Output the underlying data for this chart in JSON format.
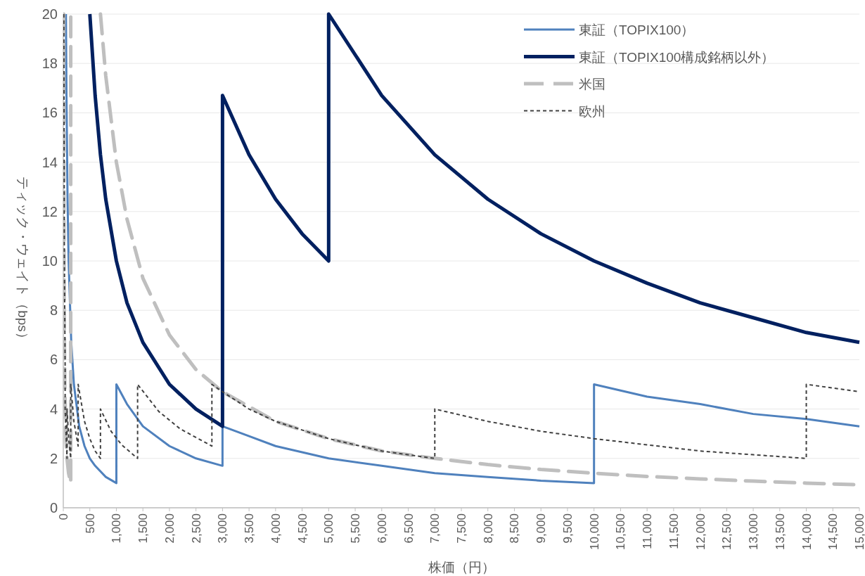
{
  "chart_data": {
    "type": "line",
    "xlabel": "株価（円）",
    "ylabel": "ティック・ウェイト（bps）",
    "xlim": [
      0,
      15000
    ],
    "ylim": [
      0,
      20
    ],
    "xticks": [
      0,
      500,
      {
        "value": 1000,
        "label": "1,000"
      },
      {
        "value": 1500,
        "label": "1,500"
      },
      {
        "value": 2000,
        "label": "2,000"
      },
      {
        "value": 2500,
        "label": "2,500"
      },
      {
        "value": 3000,
        "label": "3,000"
      },
      {
        "value": 3500,
        "label": "3,500"
      },
      {
        "value": 4000,
        "label": "4,000"
      },
      {
        "value": 4500,
        "label": "4,500"
      },
      {
        "value": 5000,
        "label": "5,000"
      },
      {
        "value": 5500,
        "label": "5,500"
      },
      {
        "value": 6000,
        "label": "6,000"
      },
      {
        "value": 6500,
        "label": "6,500"
      },
      {
        "value": 7000,
        "label": "7,000"
      },
      {
        "value": 7500,
        "label": "7,500"
      },
      {
        "value": 8000,
        "label": "8,000"
      },
      {
        "value": 8500,
        "label": "8,500"
      },
      {
        "value": 9000,
        "label": "9,000"
      },
      {
        "value": 9500,
        "label": "9,500"
      },
      {
        "value": 10000,
        "label": "10,000"
      },
      {
        "value": 10500,
        "label": "10,500"
      },
      {
        "value": 11000,
        "label": "11,000"
      },
      {
        "value": 11500,
        "label": "11,500"
      },
      {
        "value": 12000,
        "label": "12,000"
      },
      {
        "value": 12500,
        "label": "12,500"
      },
      {
        "value": 13000,
        "label": "13,000"
      },
      {
        "value": 13500,
        "label": "13,500"
      },
      {
        "value": 14000,
        "label": "14,000"
      },
      {
        "value": 14500,
        "label": "14,500"
      },
      {
        "value": 15000,
        "label": "15,000"
      }
    ],
    "yticks": [
      0,
      2,
      4,
      6,
      8,
      10,
      12,
      14,
      16,
      18,
      20
    ],
    "grid": "y",
    "legend": "top right",
    "series": [
      {
        "name": "東証（TOPIX100）",
        "color": "#4f81bd",
        "line_style": "solid",
        "x": [
          50,
          60,
          80,
          100,
          150,
          200,
          300,
          400,
          500,
          600,
          800,
          1000,
          1000,
          1200,
          1500,
          2000,
          2500,
          3000,
          3000,
          3500,
          4000,
          5000,
          6000,
          7000,
          8000,
          9000,
          10000,
          10000,
          11000,
          12000,
          13000,
          14000,
          15000
        ],
        "values": [
          20,
          16.7,
          12.5,
          10,
          6.7,
          5,
          3.3,
          2.5,
          2,
          1.7,
          1.25,
          1,
          5,
          4.2,
          3.3,
          2.5,
          2,
          1.7,
          3.3,
          2.9,
          2.5,
          2,
          1.7,
          1.4,
          1.25,
          1.1,
          1,
          5,
          4.5,
          4.2,
          3.8,
          3.6,
          3.3
        ]
      },
      {
        "name": "東証（TOPIX100構成銘柄以外）",
        "color": "#002060",
        "line_style": "solid",
        "x": [
          500,
          600,
          700,
          800,
          1000,
          1200,
          1500,
          2000,
          2500,
          3000,
          3000,
          3500,
          4000,
          4500,
          5000,
          5000,
          6000,
          7000,
          8000,
          9000,
          10000,
          11000,
          12000,
          13000,
          14000,
          15000
        ],
        "values": [
          20,
          16.7,
          14.3,
          12.5,
          10,
          8.3,
          6.7,
          5,
          4,
          3.3,
          16.7,
          14.3,
          12.5,
          11.1,
          10,
          20,
          16.7,
          14.3,
          12.5,
          11.1,
          10,
          9.1,
          8.3,
          7.7,
          7.1,
          6.7
        ]
      },
      {
        "name": "米国",
        "color": "#bfbfbf",
        "line_style": "dashed",
        "x": [
          700,
          800,
          1000,
          1200,
          1500,
          2000,
          2500,
          3000,
          4000,
          5000,
          6000,
          7000,
          8000,
          9000,
          10000,
          11000,
          12000,
          13000,
          14000,
          15000
        ],
        "values": [
          20,
          17.5,
          14,
          11.7,
          9.3,
          7,
          5.6,
          4.7,
          3.5,
          2.8,
          2.3,
          2,
          1.75,
          1.55,
          1.4,
          1.27,
          1.17,
          1.08,
          1,
          0.93
        ]
      },
      {
        "color": "#bfbfbf",
        "line_style": "dashed",
        "x": [
          7,
          10,
          14,
          20,
          28,
          50,
          70,
          100,
          140,
          140
        ],
        "values": [
          20,
          14,
          10,
          7,
          5,
          2.8,
          2,
          1.4,
          1,
          20
        ]
      },
      {
        "name": "欧州",
        "color": "#404040",
        "line_style": "dotted",
        "x": [
          10,
          20,
          35,
          35,
          70,
          70,
          105,
          140,
          140,
          200,
          280,
          280,
          400,
          500,
          600,
          700,
          700,
          900,
          1100,
          1400,
          1400,
          1800,
          2200,
          2800,
          2800,
          3000,
          3500,
          4000,
          5000,
          6000,
          7000,
          7000,
          8000,
          9000,
          10000,
          11000,
          12000,
          13000,
          14000,
          14000,
          15000
        ],
        "values": [
          20,
          10,
          5.7,
          4,
          2,
          4,
          2.7,
          2,
          5,
          3.5,
          2.5,
          5,
          3.5,
          2.8,
          2.3,
          2,
          4,
          3.1,
          2.55,
          2,
          5,
          3.9,
          3.2,
          2.5,
          5,
          4.7,
          4,
          3.5,
          2.8,
          2.3,
          2,
          4,
          3.5,
          3.1,
          2.8,
          2.55,
          2.3,
          2.15,
          2,
          5,
          4.7
        ]
      }
    ]
  }
}
